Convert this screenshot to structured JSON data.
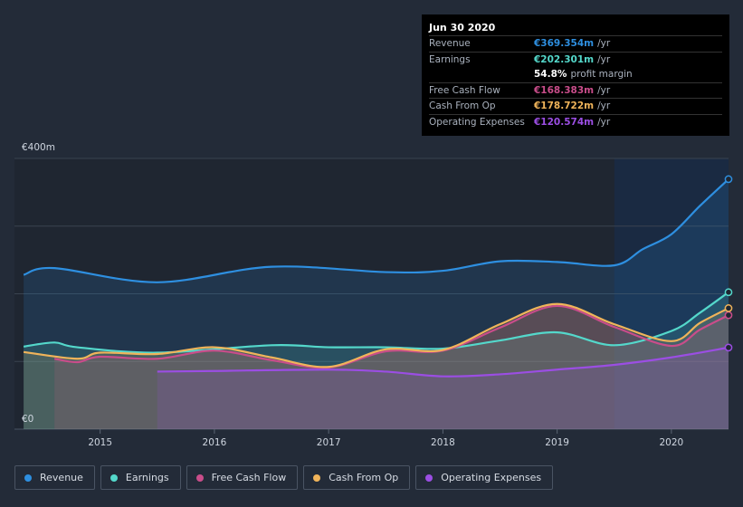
{
  "chart_data": {
    "type": "area",
    "ylabel_top": "€400m",
    "ylabel_bottom": "€0",
    "ylim": [
      0,
      400
    ],
    "x_ticks": [
      "2015",
      "2016",
      "2017",
      "2018",
      "2019",
      "2020"
    ],
    "x_tick_values": [
      2015,
      2016,
      2017,
      2018,
      2019,
      2020
    ],
    "xlim": [
      2014.25,
      2020.5
    ],
    "highlight_start": 2019.5,
    "series": [
      {
        "name": "Revenue",
        "color": "#2e8fe0",
        "x": [
          2014.33,
          2014.6,
          2015.5,
          2016.5,
          2017.5,
          2018.0,
          2018.5,
          2019.0,
          2019.5,
          2019.75,
          2020.0,
          2020.25,
          2020.5
        ],
        "values": [
          228,
          238,
          217,
          240,
          232,
          234,
          248,
          247,
          242,
          266,
          288,
          330,
          369.354
        ]
      },
      {
        "name": "Earnings",
        "color": "#54d8cb",
        "x": [
          2014.33,
          2014.6,
          2014.8,
          2015.5,
          2016.5,
          2017.0,
          2017.5,
          2018.0,
          2018.5,
          2019.0,
          2019.5,
          2020.0,
          2020.25,
          2020.5
        ],
        "values": [
          122,
          128,
          121,
          113,
          124,
          121,
          121,
          119,
          131,
          143,
          124,
          145,
          172,
          202.301
        ]
      },
      {
        "name": "Free Cash Flow",
        "color": "#c94d8a",
        "x": [
          2014.6,
          2014.8,
          2015.0,
          2015.5,
          2016.0,
          2016.5,
          2017.0,
          2017.5,
          2018.0,
          2018.5,
          2019.0,
          2019.5,
          2020.0,
          2020.25,
          2020.5
        ],
        "values": [
          104,
          99,
          107,
          104,
          116,
          102,
          91,
          115,
          116,
          150,
          182,
          151,
          123,
          147,
          168.383
        ]
      },
      {
        "name": "Cash From Op",
        "color": "#f0b45a",
        "x": [
          2014.33,
          2014.8,
          2015.0,
          2015.5,
          2016.0,
          2016.5,
          2017.0,
          2017.5,
          2018.0,
          2018.5,
          2019.0,
          2019.5,
          2020.0,
          2020.25,
          2020.5
        ],
        "values": [
          114,
          104,
          113,
          111,
          121,
          106,
          92,
          118,
          117,
          155,
          185,
          155,
          130,
          157,
          178.722
        ]
      },
      {
        "name": "Operating Expenses",
        "color": "#9b4ee3",
        "x": [
          2015.5,
          2016.0,
          2017.0,
          2017.5,
          2018.0,
          2018.5,
          2019.0,
          2019.5,
          2020.0,
          2020.5
        ],
        "values": [
          85,
          86,
          88,
          85,
          78,
          81,
          88,
          95,
          106,
          120.574
        ]
      }
    ]
  },
  "tooltip": {
    "title": "Jun 30 2020",
    "rows": [
      {
        "label": "Revenue",
        "value": "€369.354m",
        "suffix": "/yr",
        "color": "#2e8fe0"
      },
      {
        "label": "Earnings",
        "value": "€202.301m",
        "suffix": "/yr",
        "color": "#54d8cb"
      },
      {
        "label": "",
        "value": "54.8%",
        "suffix": "profit margin",
        "color": "#ffffff"
      },
      {
        "label": "Free Cash Flow",
        "value": "€168.383m",
        "suffix": "/yr",
        "color": "#c94d8a"
      },
      {
        "label": "Cash From Op",
        "value": "€178.722m",
        "suffix": "/yr",
        "color": "#f0b45a"
      },
      {
        "label": "Operating Expenses",
        "value": "€120.574m",
        "suffix": "/yr",
        "color": "#9b4ee3"
      }
    ]
  },
  "legend": [
    {
      "label": "Revenue",
      "color": "#2e8fe0"
    },
    {
      "label": "Earnings",
      "color": "#54d8cb"
    },
    {
      "label": "Free Cash Flow",
      "color": "#c94d8a"
    },
    {
      "label": "Cash From Op",
      "color": "#f0b45a"
    },
    {
      "label": "Operating Expenses",
      "color": "#9b4ee3"
    }
  ]
}
